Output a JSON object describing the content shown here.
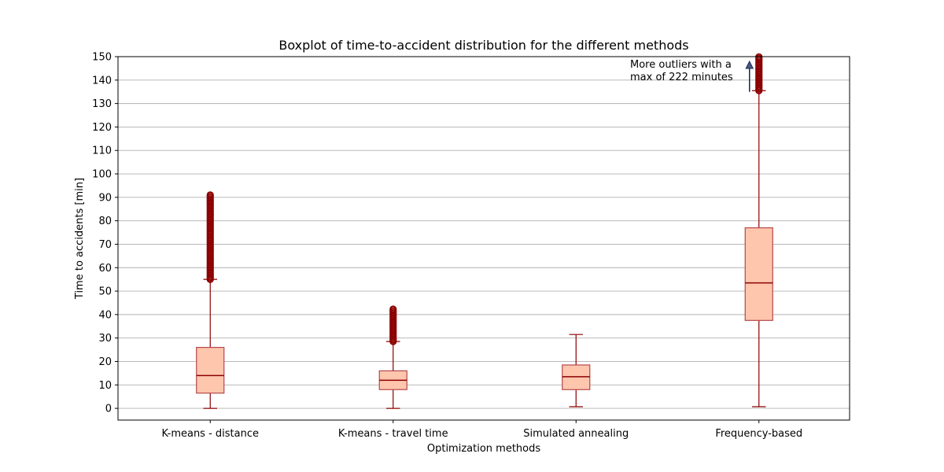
{
  "chart_data": {
    "type": "boxplot",
    "title": "Boxplot of time-to-accident distribution for the different methods",
    "xlabel": "Optimization methods",
    "ylabel": "Time to accidents [min]",
    "ylim": [
      -5,
      150
    ],
    "yticks": [
      0,
      10,
      20,
      30,
      40,
      50,
      60,
      70,
      80,
      90,
      100,
      110,
      120,
      130,
      140,
      150
    ],
    "grid": "y",
    "colors": {
      "box_fill": "#fec6ad",
      "box_edge": "#b5474b",
      "median": "#8b0000",
      "whisker": "#8b0000",
      "outlier": "#8b0000",
      "arrow": "#1a2a4a"
    },
    "categories": [
      "K-means - distance",
      "K-means - travel time",
      "Simulated annealing",
      "Frequency-based"
    ],
    "boxes": [
      {
        "name": "K-means - distance",
        "whislo": 0,
        "q1": 6.5,
        "med": 14,
        "q3": 26,
        "whishi": 55,
        "outlier_range": [
          55,
          91
        ],
        "has_outliers": true
      },
      {
        "name": "K-means - travel time",
        "whislo": 0,
        "q1": 8,
        "med": 12,
        "q3": 16,
        "whishi": 28.5,
        "outlier_range": [
          28.5,
          42.5
        ],
        "has_outliers": true
      },
      {
        "name": "Simulated annealing",
        "whislo": 0.7,
        "q1": 8,
        "med": 13.5,
        "q3": 18.5,
        "whishi": 31.5,
        "outlier_range": null,
        "has_outliers": false
      },
      {
        "name": "Frequency-based",
        "whislo": 0.7,
        "q1": 37.5,
        "med": 53.5,
        "q3": 77,
        "whishi": 135.5,
        "outlier_range": [
          135.5,
          150
        ],
        "has_outliers": true
      }
    ],
    "annotation": {
      "line1": "More outliers with a",
      "line2": "max of 222 minutes",
      "arrow_from": 135,
      "arrow_to": 148,
      "category_index": 3
    }
  }
}
